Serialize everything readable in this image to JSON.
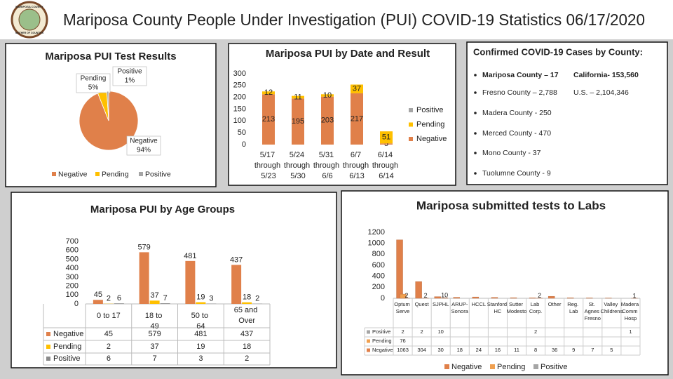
{
  "header": {
    "title": "Mariposa County People Under Investigation (PUI) COVID-19 Statistics 06/17/2020",
    "logo_top": "MARIPOSA COUNTY",
    "logo_bottom": "MOTHER OF COUNTIES"
  },
  "cases_panel": {
    "title": "Confirmed COVID-19 Cases by County:",
    "rows": [
      [
        "Mariposa County – 17",
        "California- 153,560"
      ],
      [
        "Fresno County – 2,788",
        "U.S. – 2,104,346"
      ],
      [
        "Madera County - 250"
      ],
      [
        "Merced County - 470"
      ],
      [
        "Mono County - 37"
      ],
      [
        "Tuolumne County - 9"
      ]
    ]
  },
  "chart_data": [
    {
      "type": "pie",
      "title": "Mariposa PUI Test Results",
      "categories": [
        "Negative",
        "Pending",
        "Positive"
      ],
      "values": [
        94,
        5,
        1
      ],
      "value_labels": [
        "94%",
        "5%",
        "1%"
      ],
      "colors": [
        "#e0804a",
        "#ffc000",
        "#a5a5a5"
      ],
      "legend": "bottom"
    },
    {
      "type": "stacked-bar",
      "title": "Mariposa PUI by Date and Result",
      "categories": [
        "5/17 through 5/23",
        "5/24 through 5/30",
        "5/31 through 6/6",
        "6/7 through 6/13",
        "6/14 through 6/14"
      ],
      "series": [
        {
          "name": "Negative",
          "color": "#e0804a",
          "values": [
            213,
            195,
            203,
            217,
            5
          ]
        },
        {
          "name": "Pending",
          "color": "#ffc000",
          "values": [
            12,
            11,
            10,
            37,
            51
          ]
        },
        {
          "name": "Positive",
          "color": "#a5a5a5",
          "values": [
            null,
            null,
            null,
            null,
            null
          ]
        }
      ],
      "ylim": [
        0,
        300
      ],
      "yticks": [
        0,
        50,
        100,
        150,
        200,
        250,
        300
      ],
      "legend": "right",
      "grid": false
    },
    {
      "type": "bar-table",
      "title": "Mariposa PUI by Age Groups",
      "categories": [
        "0 to 17",
        "18 to 49",
        "50 to 64",
        "65 and Over"
      ],
      "series": [
        {
          "name": "Negative",
          "color": "#e0804a",
          "values": [
            45,
            579,
            481,
            437
          ]
        },
        {
          "name": "Pending",
          "color": "#ffc000",
          "values": [
            2,
            37,
            19,
            18
          ]
        },
        {
          "name": "Positive",
          "color": "#8a8a8a",
          "values": [
            6,
            7,
            3,
            2
          ]
        }
      ],
      "ylim": [
        0,
        700
      ],
      "yticks": [
        0,
        100,
        200,
        300,
        400,
        500,
        600,
        700
      ],
      "grid": false
    },
    {
      "type": "bar-table",
      "title": "Mariposa submitted tests to Labs",
      "categories": [
        "Optum Serve",
        "Quest",
        "SJPHL",
        "ARUP-Sonora",
        "HCCL",
        "Stanford HC",
        "Sutter Modesto",
        "Lab Corp.",
        "Other",
        "Reg. Lab",
        "St. Agnes Fresno",
        "Valley Childrens",
        "Madera Comm Hosp"
      ],
      "series": [
        {
          "name": "Negative",
          "color": "#e0804a",
          "values": [
            1063,
            304,
            30,
            18,
            24,
            16,
            11,
            8,
            36,
            9,
            7,
            5,
            null
          ]
        },
        {
          "name": "Pending",
          "color": "#f0a050",
          "values": [
            76,
            null,
            null,
            null,
            null,
            null,
            null,
            null,
            null,
            null,
            null,
            null,
            null
          ]
        },
        {
          "name": "Positive",
          "color": "#a5a5a5",
          "values": [
            2,
            2,
            10,
            null,
            null,
            null,
            null,
            2,
            null,
            null,
            null,
            null,
            1
          ]
        }
      ],
      "ylim": [
        0,
        1200
      ],
      "yticks": [
        0,
        200,
        400,
        600,
        800,
        1000,
        1200
      ],
      "legend": "bottom",
      "grid": false
    }
  ]
}
